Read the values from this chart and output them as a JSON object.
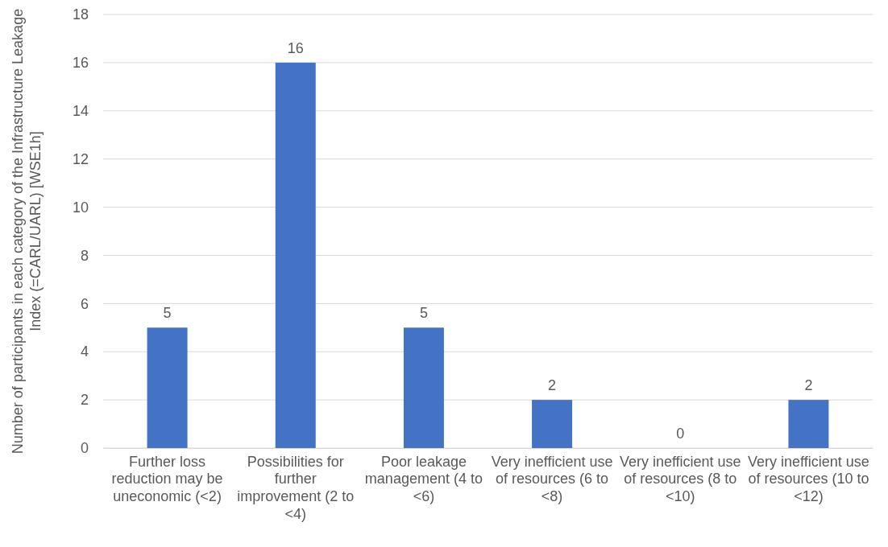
{
  "chart_data": {
    "type": "bar",
    "ylabel": "Number of participants in each category of the Infrastructure Leakage Index (=CARL/UARL) [WSE1h]",
    "categories": [
      "Further loss reduction may be uneconomic (<2)",
      "Possibilities for further improvement (2 to <4)",
      "Poor leakage management (4 to <6)",
      "Very inefficient use of resources (6 to <8)",
      "Very inefficient use of resources (8 to <10)",
      "Very inefficient use of resources (10 to <12)"
    ],
    "values": [
      5,
      16,
      5,
      2,
      0,
      2
    ],
    "color": "#4472c4",
    "ylim": [
      0,
      18
    ],
    "yticks": [
      0,
      2,
      4,
      6,
      8,
      10,
      12,
      14,
      16,
      18
    ],
    "grid": "y",
    "data_labels": true
  }
}
